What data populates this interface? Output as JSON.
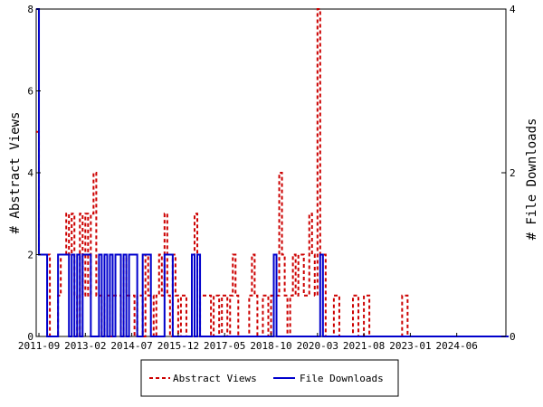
{
  "chart_data": {
    "type": "line",
    "x_axis": {
      "tick_labels": [
        "2011-09",
        "2013-02",
        "2014-07",
        "2015-12",
        "2017-05",
        "2018-10",
        "2020-03",
        "2021-08",
        "2023-01",
        "2024-06"
      ],
      "range": [
        "2011-08",
        "2025-12"
      ]
    },
    "y_left": {
      "label": "# Abstract Views",
      "ylim": [
        0,
        8
      ],
      "ticks": [
        0,
        2,
        4,
        6,
        8
      ]
    },
    "y_right": {
      "label": "# File Downloads",
      "ylim": [
        0,
        4
      ],
      "ticks": [
        0,
        2,
        4
      ]
    },
    "grid": false,
    "legend_position": "bottom",
    "series": [
      {
        "name": "Abstract Views",
        "axis": "left",
        "color": "#cc0000",
        "style": "dashed",
        "x": [
          "2011-08",
          "2011-09",
          "2011-10",
          "2011-11",
          "2011-12",
          "2012-01",
          "2012-02",
          "2012-03",
          "2012-04",
          "2012-05",
          "2012-06",
          "2012-07",
          "2012-08",
          "2012-09",
          "2012-10",
          "2012-11",
          "2012-12",
          "2013-01",
          "2013-02",
          "2013-03",
          "2013-04",
          "2013-05",
          "2013-06",
          "2013-07",
          "2013-08",
          "2013-09",
          "2013-10",
          "2013-11",
          "2013-12",
          "2014-01",
          "2014-02",
          "2014-03",
          "2014-04",
          "2014-05",
          "2014-06",
          "2014-07",
          "2014-08",
          "2014-09",
          "2014-10",
          "2014-11",
          "2014-12",
          "2015-01",
          "2015-02",
          "2015-03",
          "2015-04",
          "2015-05",
          "2015-06",
          "2015-07",
          "2015-08",
          "2015-09",
          "2015-10",
          "2015-11",
          "2015-12",
          "2016-01",
          "2016-02",
          "2016-03",
          "2016-04",
          "2016-05",
          "2016-06",
          "2016-07",
          "2016-08",
          "2016-09",
          "2016-10",
          "2016-11",
          "2016-12",
          "2017-01",
          "2017-02",
          "2017-03",
          "2017-04",
          "2017-05",
          "2017-06",
          "2017-07",
          "2017-08",
          "2017-09",
          "2017-10",
          "2017-11",
          "2017-12",
          "2018-01",
          "2018-02",
          "2018-03",
          "2018-04",
          "2018-05",
          "2018-06",
          "2018-07",
          "2018-08",
          "2018-09",
          "2018-10",
          "2018-11",
          "2018-12",
          "2019-01",
          "2019-02",
          "2019-03",
          "2019-04",
          "2019-05",
          "2019-06",
          "2019-07",
          "2019-08",
          "2019-09",
          "2019-10",
          "2019-11",
          "2019-12",
          "2020-01",
          "2020-02",
          "2020-03",
          "2020-04",
          "2020-05",
          "2020-06",
          "2020-07",
          "2020-08",
          "2020-09",
          "2020-10",
          "2020-11",
          "2020-12",
          "2021-01",
          "2021-02",
          "2021-03",
          "2021-04",
          "2021-05",
          "2021-06",
          "2021-07",
          "2021-08",
          "2021-09",
          "2021-10",
          "2021-11",
          "2021-12",
          "2022-01",
          "2022-02",
          "2022-03",
          "2022-04",
          "2022-05",
          "2022-06",
          "2022-07",
          "2022-08",
          "2022-09",
          "2022-10",
          "2022-11",
          "2022-12",
          "2023-01",
          "2023-02",
          "2023-03",
          "2023-04",
          "2023-05",
          "2023-06",
          "2023-07",
          "2023-08",
          "2023-09",
          "2023-10",
          "2023-11",
          "2023-12",
          "2024-01",
          "2024-02",
          "2024-03",
          "2024-04",
          "2024-05",
          "2024-06",
          "2024-07",
          "2024-08",
          "2024-09",
          "2024-10",
          "2024-11",
          "2024-12",
          "2025-01",
          "2025-02",
          "2025-03",
          "2025-04",
          "2025-05",
          "2025-06",
          "2025-07",
          "2025-08",
          "2025-09",
          "2025-10",
          "2025-11",
          "2025-12"
        ],
        "values": [
          5,
          2,
          2,
          2,
          2,
          0,
          0,
          0,
          1,
          2,
          2,
          3,
          2,
          3,
          1,
          0,
          3,
          1,
          3,
          1,
          3,
          4,
          1,
          1,
          0,
          1,
          1,
          0,
          1,
          1,
          1,
          0,
          2,
          1,
          1,
          1,
          0,
          1,
          1,
          0,
          2,
          1,
          1,
          0,
          1,
          2,
          1,
          3,
          1,
          0,
          2,
          1,
          0,
          1,
          1,
          0,
          0,
          1,
          3,
          0,
          1,
          1,
          1,
          1,
          0,
          1,
          1,
          0,
          1,
          1,
          0,
          1,
          2,
          1,
          0,
          0,
          0,
          0,
          1,
          2,
          1,
          0,
          0,
          1,
          1,
          0,
          1,
          1,
          1,
          4,
          2,
          1,
          0,
          1,
          2,
          1,
          2,
          2,
          1,
          1,
          3,
          2,
          1,
          8,
          2,
          2,
          0,
          0,
          0,
          1,
          1,
          0,
          0,
          0,
          0,
          0,
          1,
          1,
          0,
          0,
          1,
          1,
          0,
          0,
          0,
          0,
          0,
          0,
          0,
          0,
          0,
          0,
          0,
          0,
          1,
          1,
          0,
          0,
          0,
          0,
          0,
          0,
          0,
          0,
          0,
          0,
          0,
          0,
          0,
          0,
          0,
          0,
          0,
          0,
          0,
          0,
          0,
          0,
          0,
          0,
          0,
          0,
          0,
          0,
          0,
          0,
          0,
          0,
          0,
          0,
          0,
          0,
          0
        ]
      },
      {
        "name": "File Downloads",
        "axis": "right",
        "color": "#0000cc",
        "style": "solid",
        "x": [
          "2011-08",
          "2011-09",
          "2011-10",
          "2011-11",
          "2011-12",
          "2012-01",
          "2012-02",
          "2012-03",
          "2012-04",
          "2012-05",
          "2012-06",
          "2012-07",
          "2012-08",
          "2012-09",
          "2012-10",
          "2012-11",
          "2012-12",
          "2013-01",
          "2013-02",
          "2013-03",
          "2013-04",
          "2013-05",
          "2013-06",
          "2013-07",
          "2013-08",
          "2013-09",
          "2013-10",
          "2013-11",
          "2013-12",
          "2014-01",
          "2014-02",
          "2014-03",
          "2014-04",
          "2014-05",
          "2014-06",
          "2014-07",
          "2014-08",
          "2014-09",
          "2014-10",
          "2014-11",
          "2014-12",
          "2015-01",
          "2015-02",
          "2015-03",
          "2015-04",
          "2015-05",
          "2015-06",
          "2015-07",
          "2015-08",
          "2015-09",
          "2015-10",
          "2015-11",
          "2015-12",
          "2016-01",
          "2016-02",
          "2016-03",
          "2016-04",
          "2016-05",
          "2016-06",
          "2016-07",
          "2016-08",
          "2016-09",
          "2016-10",
          "2016-11",
          "2016-12",
          "2017-01",
          "2017-02",
          "2017-03",
          "2017-04",
          "2017-05",
          "2017-06",
          "2017-07",
          "2017-08",
          "2017-09",
          "2017-10",
          "2017-11",
          "2017-12",
          "2018-01",
          "2018-02",
          "2018-03",
          "2018-04",
          "2018-05",
          "2018-06",
          "2018-07",
          "2018-08",
          "2018-09",
          "2018-10",
          "2018-11",
          "2018-12",
          "2019-01",
          "2019-02",
          "2019-03",
          "2019-04",
          "2019-05",
          "2019-06",
          "2019-07",
          "2019-08",
          "2019-09",
          "2019-10",
          "2019-11",
          "2019-12",
          "2020-01",
          "2020-02",
          "2020-03",
          "2020-04",
          "2020-05",
          "2020-06",
          "2020-07",
          "2020-08",
          "2020-09",
          "2020-10",
          "2020-11",
          "2020-12",
          "2021-01",
          "2021-02",
          "2021-03",
          "2021-04",
          "2021-05",
          "2021-06",
          "2021-07",
          "2021-08",
          "2021-09",
          "2021-10",
          "2021-11",
          "2021-12",
          "2022-01",
          "2022-02",
          "2022-03",
          "2022-04",
          "2022-05",
          "2022-06",
          "2022-07",
          "2022-08",
          "2022-09",
          "2022-10",
          "2022-11",
          "2022-12",
          "2023-01",
          "2023-02",
          "2023-03",
          "2023-04",
          "2023-05",
          "2023-06",
          "2023-07",
          "2023-08",
          "2023-09",
          "2023-10",
          "2023-11",
          "2023-12",
          "2024-01",
          "2024-02",
          "2024-03",
          "2024-04",
          "2024-05",
          "2024-06",
          "2024-07",
          "2024-08",
          "2024-09",
          "2024-10",
          "2024-11",
          "2024-12",
          "2025-01",
          "2025-02",
          "2025-03",
          "2025-04",
          "2025-05",
          "2025-06",
          "2025-07",
          "2025-08",
          "2025-09",
          "2025-10",
          "2025-11",
          "2025-12"
        ],
        "values": [
          4,
          1,
          1,
          1,
          0,
          0,
          0,
          0,
          1,
          1,
          1,
          1,
          0,
          1,
          0,
          1,
          0,
          1,
          1,
          1,
          0,
          0,
          0,
          1,
          0,
          1,
          0,
          1,
          0,
          1,
          1,
          0,
          1,
          0,
          1,
          1,
          1,
          0,
          0,
          1,
          1,
          1,
          0,
          0,
          0,
          0,
          0,
          1,
          1,
          1,
          0,
          0,
          0,
          0,
          0,
          0,
          0,
          1,
          0,
          1,
          0,
          0,
          0,
          0,
          0,
          0,
          0,
          0,
          0,
          0,
          0,
          0,
          0,
          0,
          0,
          0,
          0,
          0,
          0,
          0,
          0,
          0,
          0,
          0,
          0,
          0,
          0,
          1,
          0,
          0,
          0,
          0,
          0,
          0,
          0,
          0,
          0,
          0,
          0,
          0,
          0,
          0,
          0,
          0,
          1,
          0,
          0,
          0,
          0,
          0,
          0,
          0,
          0,
          0,
          0,
          0,
          0,
          0,
          0,
          0,
          0,
          0,
          0,
          0,
          0,
          0,
          0,
          0,
          0,
          0,
          0,
          0,
          0,
          0,
          0,
          0,
          0,
          0,
          0,
          0,
          0,
          0,
          0,
          0,
          0,
          0,
          0,
          0,
          0,
          0,
          0,
          0,
          0,
          0,
          0,
          0,
          0,
          0,
          0,
          0,
          0,
          0,
          0,
          0,
          0,
          0,
          0,
          0,
          0,
          0,
          0,
          0,
          0
        ]
      }
    ]
  }
}
